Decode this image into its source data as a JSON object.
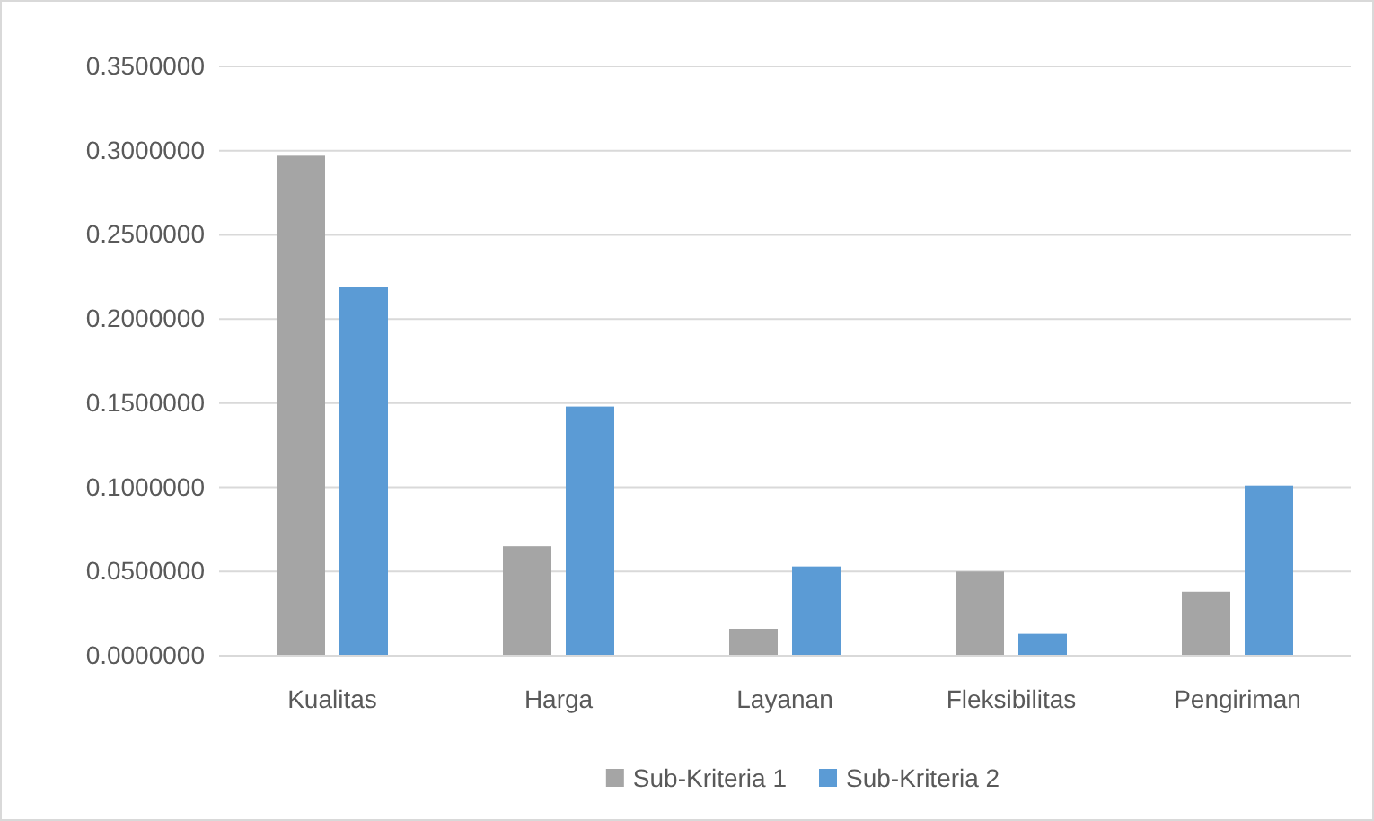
{
  "chart_data": {
    "type": "bar",
    "categories": [
      "Kualitas",
      "Harga",
      "Layanan",
      "Fleksibilitas",
      "Pengiriman"
    ],
    "series": [
      {
        "name": "Sub-Kriteria 1",
        "color": "#a5a5a5",
        "values": [
          0.297,
          0.065,
          0.016,
          0.05,
          0.038
        ]
      },
      {
        "name": "Sub-Kriteria 2",
        "color": "#5b9bd5",
        "values": [
          0.219,
          0.148,
          0.053,
          0.013,
          0.101
        ]
      }
    ],
    "ylim": [
      0,
      0.35
    ],
    "yticks": [
      {
        "value": 0,
        "label": "0.0000000"
      },
      {
        "value": 0.05,
        "label": "0.0500000"
      },
      {
        "value": 0.1,
        "label": "0.1000000"
      },
      {
        "value": 0.15,
        "label": "0.1500000"
      },
      {
        "value": 0.2,
        "label": "0.2000000"
      },
      {
        "value": 0.25,
        "label": "0.2500000"
      },
      {
        "value": 0.3,
        "label": "0.3000000"
      },
      {
        "value": 0.35,
        "label": "0.3500000"
      }
    ],
    "grid": "y",
    "legend": "bottom"
  }
}
